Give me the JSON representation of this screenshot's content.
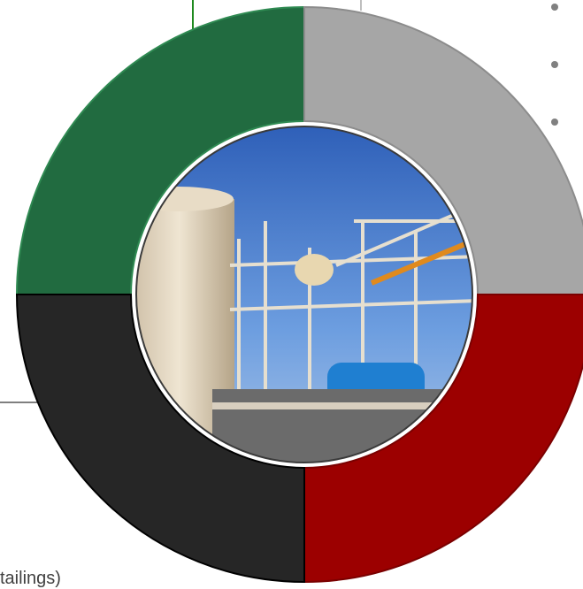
{
  "texts": {
    "caption": "tailings)"
  }
}
